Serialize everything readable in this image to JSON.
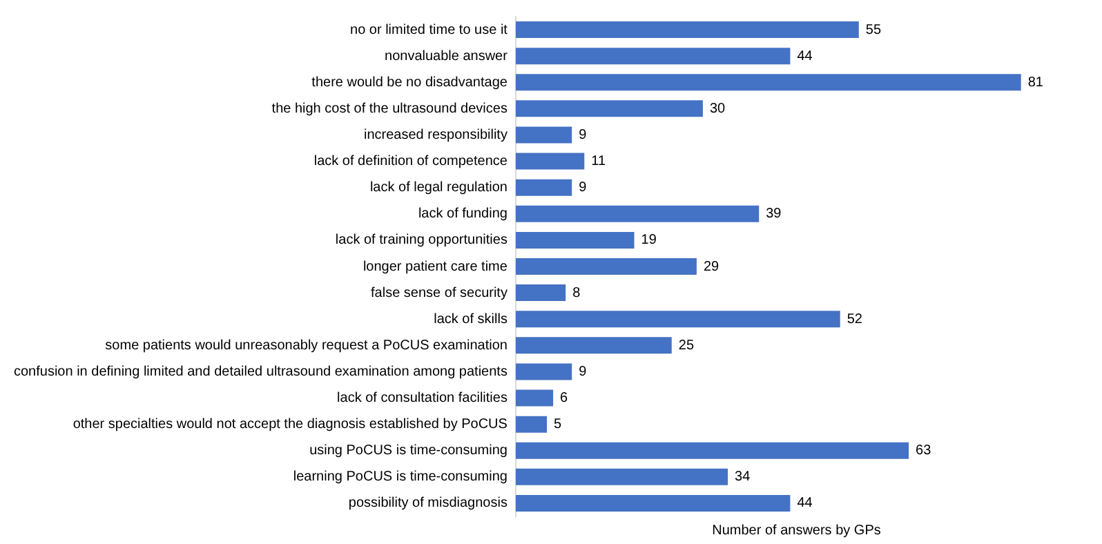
{
  "chart_data": {
    "type": "bar",
    "orientation": "horizontal",
    "xlabel": "Number of answers by GPs",
    "categories": [
      "no or limited time to use it",
      "nonvaluable answer",
      "there would be no disadvantage",
      "the high cost of the ultrasound devices",
      "increased responsibility",
      "lack of definition of competence",
      "lack of legal regulation",
      "lack of funding",
      "lack of training opportunities",
      "longer patient care time",
      "false sense of security",
      "lack of skills",
      "some patients would unreasonably request a PoCUS examination",
      "confusion in defining limited and detailed ultrasound examination among patients",
      "lack of consultation facilities",
      "other specialties would not accept the diagnosis established by PoCUS",
      "using PoCUS is time-consuming",
      "learning PoCUS is time-consuming",
      "possibility of misdiagnosis"
    ],
    "values": [
      55,
      44,
      81,
      30,
      9,
      11,
      9,
      39,
      19,
      29,
      8,
      52,
      25,
      9,
      6,
      5,
      63,
      34,
      44
    ],
    "color": "#4472c4",
    "data_labels": true,
    "grid": false,
    "legend": false
  }
}
